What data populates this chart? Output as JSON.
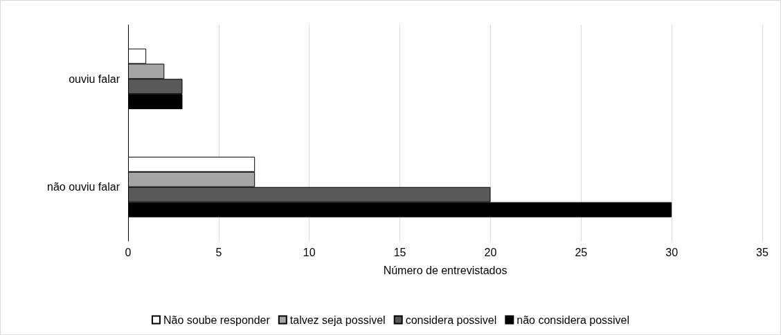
{
  "chart_data": {
    "type": "bar",
    "orientation": "horizontal",
    "xlabel": "Número de entrevistados",
    "categories": [
      "ouviu falar",
      "não ouviu falar"
    ],
    "series": [
      {
        "name": "Não soube responder",
        "color": "#ffffff",
        "values": [
          1,
          7
        ]
      },
      {
        "name": "talvez seja possivel",
        "color": "#a6a6a6",
        "values": [
          2,
          7
        ]
      },
      {
        "name": "considera possivel",
        "color": "#595959",
        "values": [
          3,
          20
        ]
      },
      {
        "name": "não considera possivel",
        "color": "#000000",
        "values": [
          3,
          30
        ]
      }
    ],
    "xlim": [
      0,
      35
    ],
    "xticks": [
      0,
      5,
      10,
      15,
      20,
      25,
      30,
      35
    ],
    "grid": "x",
    "legend": "bottom"
  }
}
